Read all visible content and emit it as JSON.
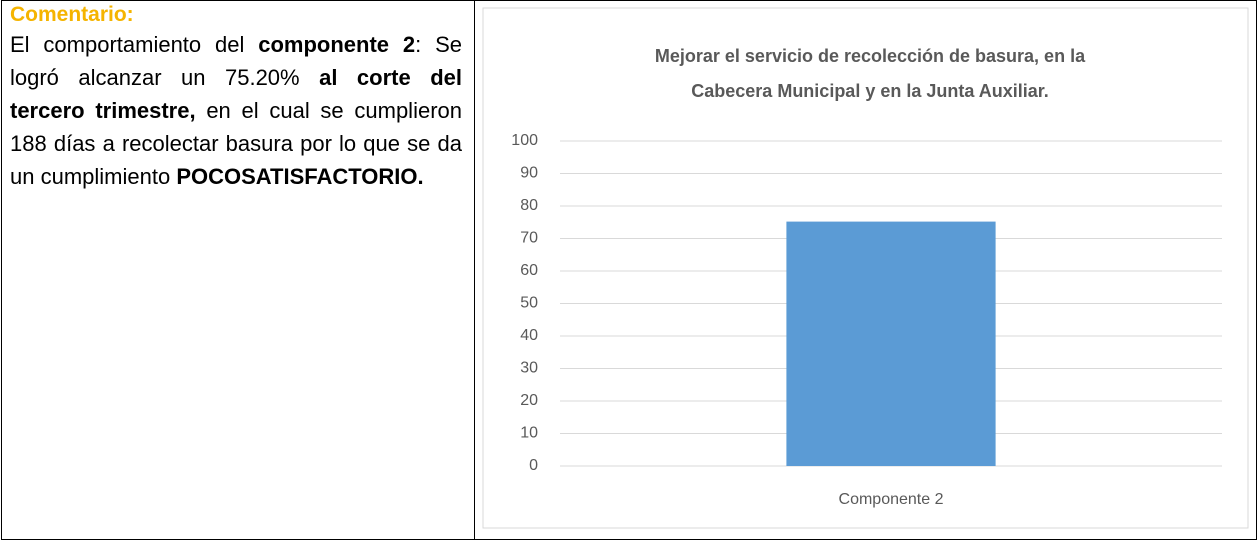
{
  "comment": {
    "heading": "Comentario:",
    "runs": [
      {
        "text": "El comportamiento del ",
        "bold": false
      },
      {
        "text": "componente 2",
        "bold": true
      },
      {
        "text": ": Se logró alcanzar un 75.20% ",
        "bold": false
      },
      {
        "text": "al corte del tercero trimestre,",
        "bold": true
      },
      {
        "text": " en el cual se cumplieron 188 días a recolectar basura por lo que se da un cumplimiento ",
        "bold": false
      },
      {
        "text": "POCOSATISFACTORIO.",
        "bold": true
      }
    ]
  },
  "chart_data": {
    "type": "bar",
    "title": [
      "Mejorar el servicio de recolección de basura, en la",
      "Cabecera Municipal y en la Junta Auxiliar."
    ],
    "categories": [
      "Componente 2"
    ],
    "values": [
      75.2
    ],
    "color": "#5b9bd5",
    "ylim": [
      0,
      100
    ],
    "yticks": [
      0,
      10,
      20,
      30,
      40,
      50,
      60,
      70,
      80,
      90,
      100
    ],
    "grid": true
  }
}
